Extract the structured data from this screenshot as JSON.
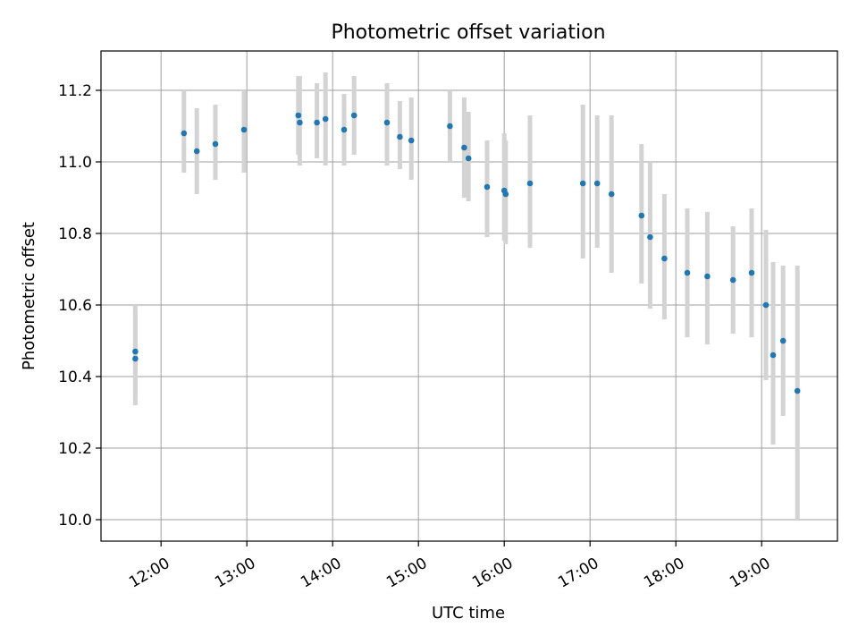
{
  "chart_data": {
    "type": "scatter",
    "title": "Photometric offset variation",
    "xlabel": "UTC time",
    "ylabel": "Photometric offset",
    "xlim": [
      "11:18",
      "19:53"
    ],
    "ylim": [
      9.94,
      11.31
    ],
    "grid": true,
    "x_ticks": [
      "12:00",
      "13:00",
      "14:00",
      "15:00",
      "16:00",
      "17:00",
      "18:00",
      "19:00"
    ],
    "y_ticks": [
      "10.0",
      "10.2",
      "10.4",
      "10.6",
      "10.8",
      "11.0",
      "11.2"
    ],
    "errorbar_color": "#d3d3d3",
    "point_color": "#1f77b4",
    "points": [
      {
        "x": "11:42",
        "y": 10.47,
        "ylow": 10.34,
        "yhigh": 10.6
      },
      {
        "x": "11:42",
        "y": 10.45,
        "ylow": 10.32,
        "yhigh": 10.58
      },
      {
        "x": "12:16",
        "y": 11.08,
        "ylow": 10.97,
        "yhigh": 11.2
      },
      {
        "x": "12:25",
        "y": 11.03,
        "ylow": 10.91,
        "yhigh": 11.15
      },
      {
        "x": "12:38",
        "y": 11.05,
        "ylow": 10.95,
        "yhigh": 11.16
      },
      {
        "x": "12:58",
        "y": 11.09,
        "ylow": 10.97,
        "yhigh": 11.2
      },
      {
        "x": "13:36",
        "y": 11.13,
        "ylow": 11.02,
        "yhigh": 11.24
      },
      {
        "x": "13:37",
        "y": 11.11,
        "ylow": 10.99,
        "yhigh": 11.24
      },
      {
        "x": "13:49",
        "y": 11.11,
        "ylow": 11.01,
        "yhigh": 11.22
      },
      {
        "x": "13:55",
        "y": 11.12,
        "ylow": 10.99,
        "yhigh": 11.25
      },
      {
        "x": "14:08",
        "y": 11.09,
        "ylow": 10.99,
        "yhigh": 11.19
      },
      {
        "x": "14:15",
        "y": 11.13,
        "ylow": 11.02,
        "yhigh": 11.24
      },
      {
        "x": "14:38",
        "y": 11.11,
        "ylow": 10.99,
        "yhigh": 11.22
      },
      {
        "x": "14:47",
        "y": 11.07,
        "ylow": 10.98,
        "yhigh": 11.17
      },
      {
        "x": "14:55",
        "y": 11.06,
        "ylow": 10.95,
        "yhigh": 11.18
      },
      {
        "x": "15:22",
        "y": 11.1,
        "ylow": 11.0,
        "yhigh": 11.2
      },
      {
        "x": "15:32",
        "y": 11.04,
        "ylow": 10.9,
        "yhigh": 11.18
      },
      {
        "x": "15:35",
        "y": 11.01,
        "ylow": 10.89,
        "yhigh": 11.14
      },
      {
        "x": "15:48",
        "y": 10.93,
        "ylow": 10.79,
        "yhigh": 11.06
      },
      {
        "x": "16:00",
        "y": 10.92,
        "ylow": 10.78,
        "yhigh": 11.08
      },
      {
        "x": "16:01",
        "y": 10.91,
        "ylow": 10.77,
        "yhigh": 11.06
      },
      {
        "x": "16:18",
        "y": 10.94,
        "ylow": 10.76,
        "yhigh": 11.13
      },
      {
        "x": "16:55",
        "y": 10.94,
        "ylow": 10.73,
        "yhigh": 11.16
      },
      {
        "x": "17:05",
        "y": 10.94,
        "ylow": 10.76,
        "yhigh": 11.13
      },
      {
        "x": "17:15",
        "y": 10.91,
        "ylow": 10.69,
        "yhigh": 11.13
      },
      {
        "x": "17:36",
        "y": 10.85,
        "ylow": 10.66,
        "yhigh": 11.05
      },
      {
        "x": "17:42",
        "y": 10.79,
        "ylow": 10.59,
        "yhigh": 11.0
      },
      {
        "x": "17:52",
        "y": 10.73,
        "ylow": 10.56,
        "yhigh": 10.91
      },
      {
        "x": "18:08",
        "y": 10.69,
        "ylow": 10.51,
        "yhigh": 10.87
      },
      {
        "x": "18:22",
        "y": 10.68,
        "ylow": 10.49,
        "yhigh": 10.86
      },
      {
        "x": "18:40",
        "y": 10.67,
        "ylow": 10.52,
        "yhigh": 10.82
      },
      {
        "x": "18:53",
        "y": 10.69,
        "ylow": 10.51,
        "yhigh": 10.87
      },
      {
        "x": "19:03",
        "y": 10.6,
        "ylow": 10.39,
        "yhigh": 10.81
      },
      {
        "x": "19:08",
        "y": 10.46,
        "ylow": 10.21,
        "yhigh": 10.72
      },
      {
        "x": "19:15",
        "y": 10.5,
        "ylow": 10.29,
        "yhigh": 10.71
      },
      {
        "x": "19:25",
        "y": 10.36,
        "ylow": 10.0,
        "yhigh": 10.71
      }
    ]
  }
}
